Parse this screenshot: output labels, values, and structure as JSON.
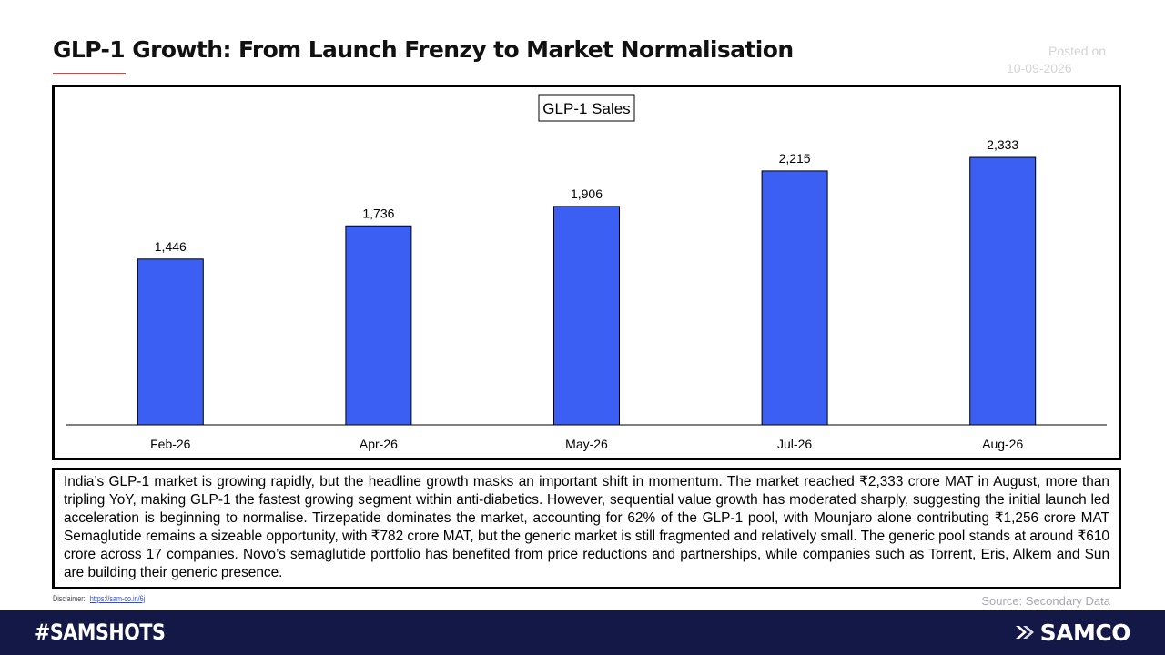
{
  "page": {
    "title": "GLP-1 Growth: From Launch Frenzy to Market Normalisation",
    "posted_label": "Posted on",
    "posted_date": "10-09-2026"
  },
  "chart_data": {
    "type": "bar",
    "title": "GLP-1 Sales",
    "categories": [
      "Feb-26",
      "Apr-26",
      "May-26",
      "Jul-26",
      "Aug-26"
    ],
    "values": [
      1446,
      1736,
      1906,
      2215,
      2333
    ],
    "value_labels": [
      "1,446",
      "1,736",
      "1,906",
      "2,215",
      "2,333"
    ],
    "bar_color": "#3a5ff2",
    "ylim": [
      0,
      2500
    ],
    "grid": false,
    "legend": "none",
    "xlabel": "",
    "ylabel": ""
  },
  "commentary": "India’s GLP-1 market is growing rapidly, but the headline growth masks an important shift in momentum. The market reached ₹2,333 crore MAT in August, more than tripling YoY, making GLP-1 the fastest growing segment within anti-diabetics. However, sequential value growth has moderated sharply, suggesting the initial launch led acceleration is beginning to normalise. Tirzepatide dominates the market, accounting for 62% of the GLP-1 pool, with Mounjaro alone contributing ₹1,256 crore MAT Semaglutide remains a sizeable opportunity, with ₹782 crore MAT, but the generic market is still fragmented and relatively small. The generic pool stands at around ₹610 crore across 17 companies. Novo’s semaglutide portfolio has benefited from price reductions and partnerships, while companies such as Torrent, Eris, Alkem and Sun are building their generic presence.",
  "disclaimer": {
    "label": "Disclaimer:",
    "link_text": "https://sam-co.in/6j"
  },
  "source": "Source: Secondary Data",
  "footer": {
    "hashtag": "#SAMSHOTS",
    "brand": "SAMCO",
    "brand_icon": "samco-logo-icon",
    "background": "#141846"
  }
}
